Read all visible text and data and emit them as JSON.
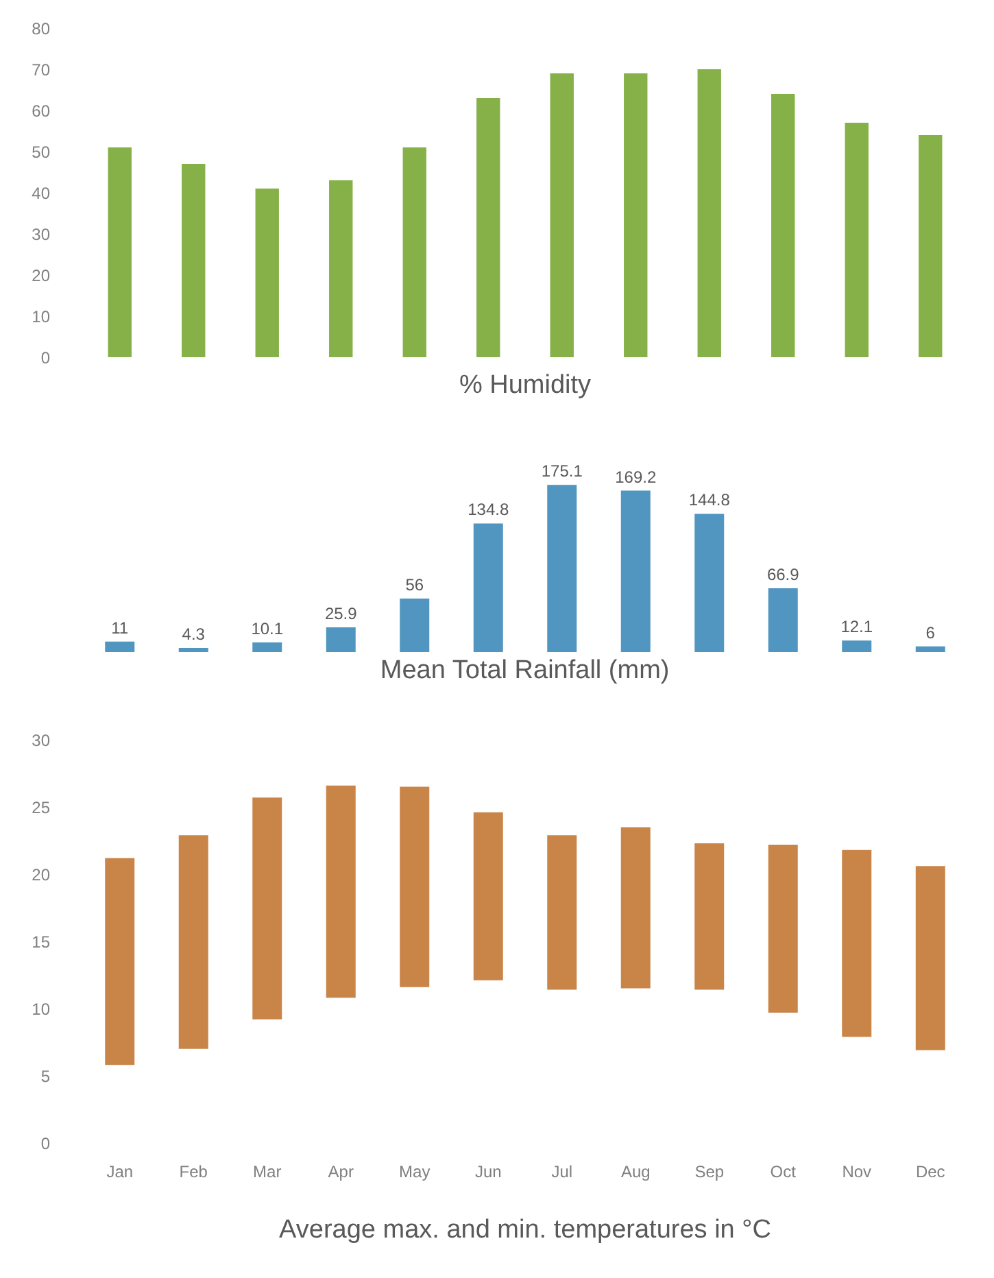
{
  "chart_data": [
    {
      "type": "bar",
      "title": "% Humidity",
      "categories": [
        null,
        null,
        null,
        null,
        null,
        null,
        null,
        null,
        null,
        null,
        null,
        null
      ],
      "values": [
        51,
        47,
        41,
        43,
        51,
        63,
        69,
        69,
        70,
        64,
        57,
        54
      ],
      "color": "#86b148",
      "ylim": [
        0,
        80
      ],
      "yticks": [
        0,
        10,
        20,
        30,
        40,
        50,
        60,
        70,
        80
      ],
      "tick_labels": "y"
    },
    {
      "type": "bar",
      "title": "Mean Total Rainfall (mm)",
      "categories": [
        null,
        null,
        null,
        null,
        null,
        null,
        null,
        null,
        null,
        null,
        null,
        null
      ],
      "values": [
        11,
        4.3,
        10.1,
        25.9,
        56,
        134.8,
        175.1,
        169.2,
        144.8,
        66.9,
        12.1,
        6
      ],
      "color": "#5096c0",
      "data_labels": true,
      "tick_labels": false
    },
    {
      "type": "bar",
      "title": "Average max. and min. temperatures in °C",
      "categories": [
        "Jan",
        "Feb",
        "Mar",
        "Apr",
        "May",
        "Jun",
        "Jul",
        "Aug",
        "Sep",
        "Oct",
        "Nov",
        "Dec"
      ],
      "base": [
        5.8,
        7.0,
        9.2,
        10.8,
        11.6,
        12.1,
        11.4,
        11.5,
        11.4,
        9.7,
        7.9,
        6.9
      ],
      "values": [
        15.4,
        15.9,
        16.5,
        15.8,
        14.9,
        12.5,
        11.5,
        12.0,
        10.9,
        12.5,
        13.9,
        13.7
      ],
      "color": "#c98448",
      "ylim": [
        0,
        30
      ],
      "yticks": [
        0,
        5,
        10,
        15,
        20,
        25,
        30
      ]
    }
  ]
}
